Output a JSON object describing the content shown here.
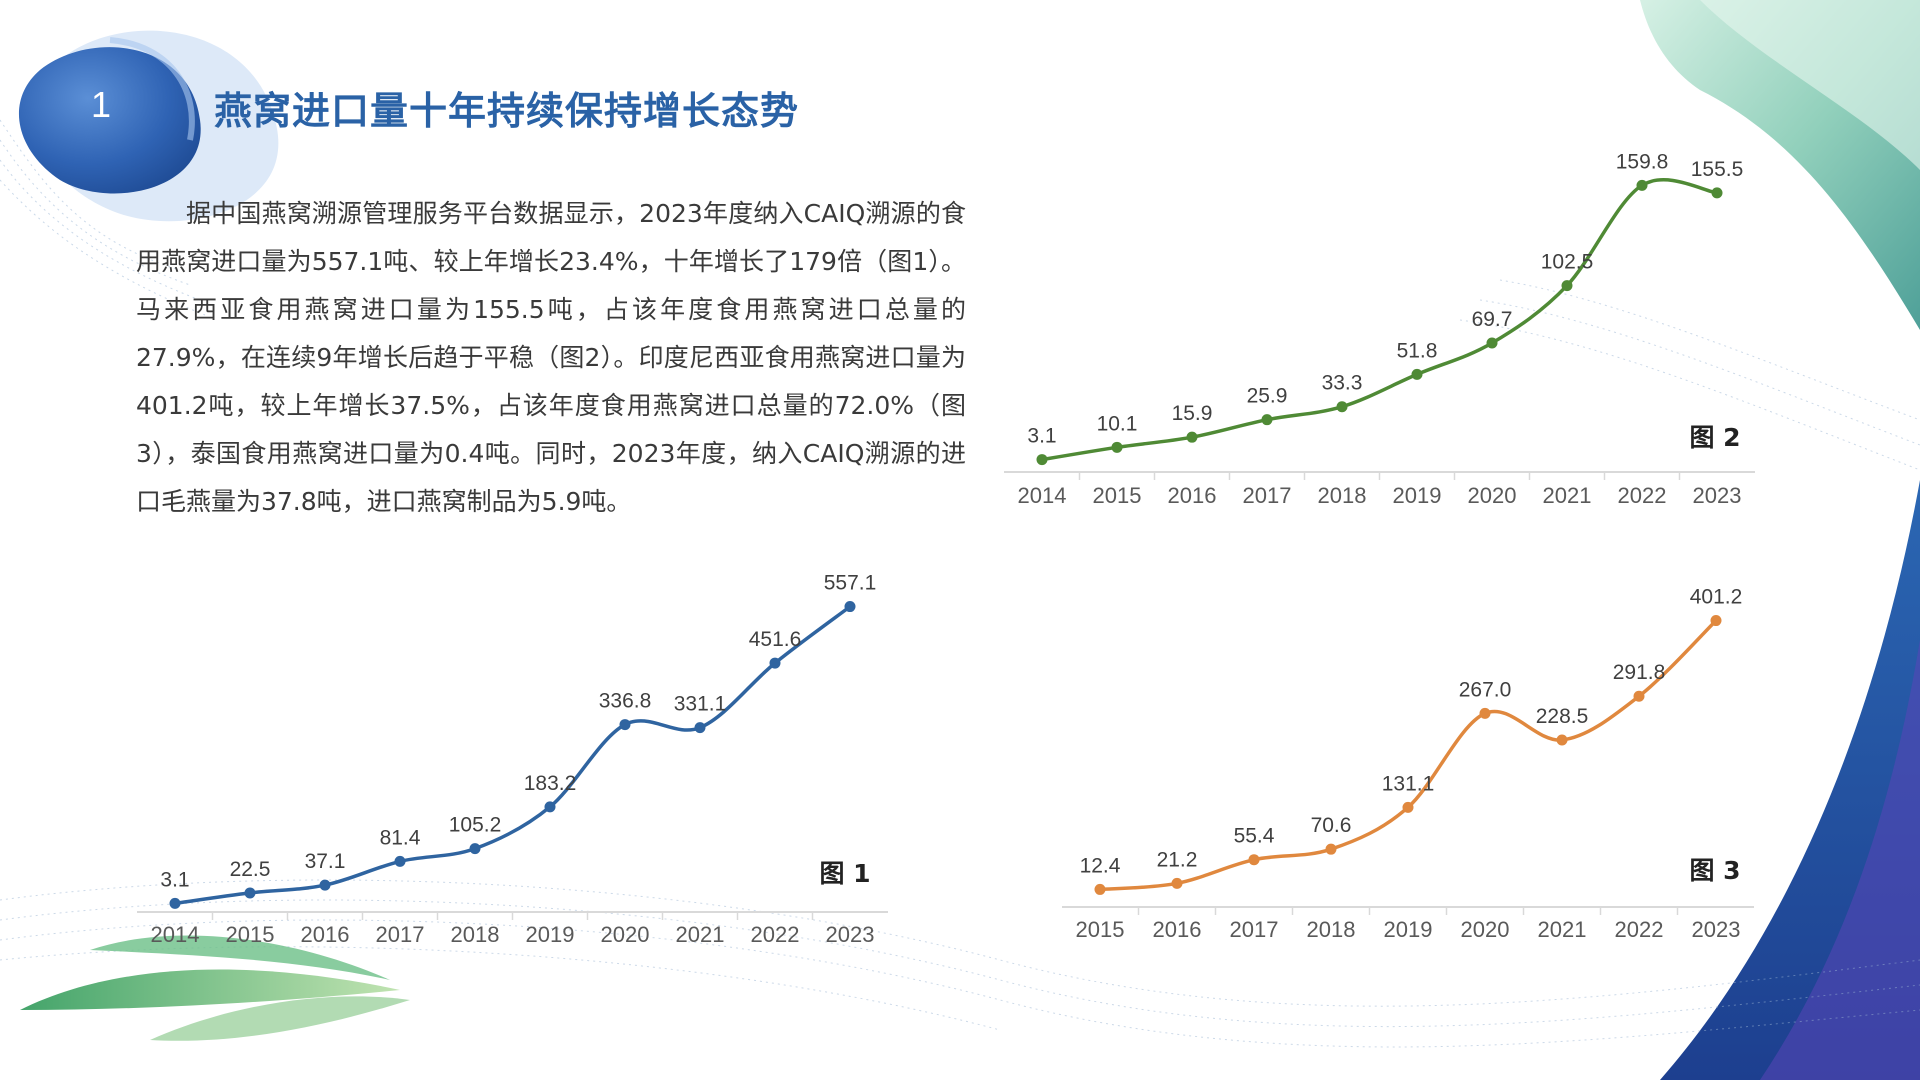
{
  "section": {
    "number": "1",
    "title": "燕窝进口量十年持续保持增长态势"
  },
  "body": {
    "paragraph": "据中国燕窝溯源管理服务平台数据显示，2023年度纳入CAIQ溯源的食用燕窝进口量为557.1吨、较上年增长23.4%，十年增长了179倍（图1）。马来西亚食用燕窝进口量为155.5吨，占该年度食用燕窝进口总量的27.9%，在连续9年增长后趋于平稳（图2）。印度尼西亚食用燕窝进口量为401.2吨，较上年增长37.5%，占该年度食用燕窝进口总量的72.0%（图3），泰国食用燕窝进口量为0.4吨。同时，2023年度，纳入CAIQ溯源的进口毛燕量为37.8吨，进口燕窝制品为5.9吨。"
  },
  "colors": {
    "title": "#2a62a6",
    "chart1": "#2f64a0",
    "chart2": "#4f8a35",
    "chart3": "#e0883e"
  },
  "chart_data": [
    {
      "type": "line",
      "figure_label": "图 1",
      "categories": [
        "2014",
        "2015",
        "2016",
        "2017",
        "2018",
        "2019",
        "2020",
        "2021",
        "2022",
        "2023"
      ],
      "values": [
        3.1,
        22.5,
        37.1,
        81.4,
        105.2,
        183.2,
        336.8,
        331.1,
        451.6,
        557.1
      ],
      "labels": [
        "3.1",
        "22.5",
        "37.1",
        "81.4",
        "105.2",
        "183.2",
        "336.8",
        "331.1",
        "451.6",
        "557.1"
      ],
      "ylim": [
        0,
        560
      ],
      "grid": false,
      "legend": "none"
    },
    {
      "type": "line",
      "figure_label": "图 2",
      "categories": [
        "2014",
        "2015",
        "2016",
        "2017",
        "2018",
        "2019",
        "2020",
        "2021",
        "2022",
        "2023"
      ],
      "values": [
        3.1,
        10.1,
        15.9,
        25.9,
        33.3,
        51.8,
        69.7,
        102.5,
        159.8,
        155.5
      ],
      "labels": [
        "3.1",
        "10.1",
        "15.9",
        "25.9",
        "33.3",
        "51.8",
        "69.7",
        "102.5",
        "159.8",
        "155.5"
      ],
      "ylim": [
        0,
        160
      ],
      "grid": false,
      "legend": "none"
    },
    {
      "type": "line",
      "figure_label": "图 3",
      "categories": [
        "2015",
        "2016",
        "2017",
        "2018",
        "2019",
        "2020",
        "2021",
        "2022",
        "2023"
      ],
      "values": [
        12.4,
        21.2,
        55.4,
        70.6,
        131.1,
        267.0,
        228.5,
        291.8,
        401.2
      ],
      "labels": [
        "12.4",
        "21.2",
        "55.4",
        "70.6",
        "131.1",
        "267.0",
        "228.5",
        "291.8",
        "401.2"
      ],
      "ylim": [
        0,
        402
      ],
      "grid": false,
      "legend": "none"
    }
  ]
}
